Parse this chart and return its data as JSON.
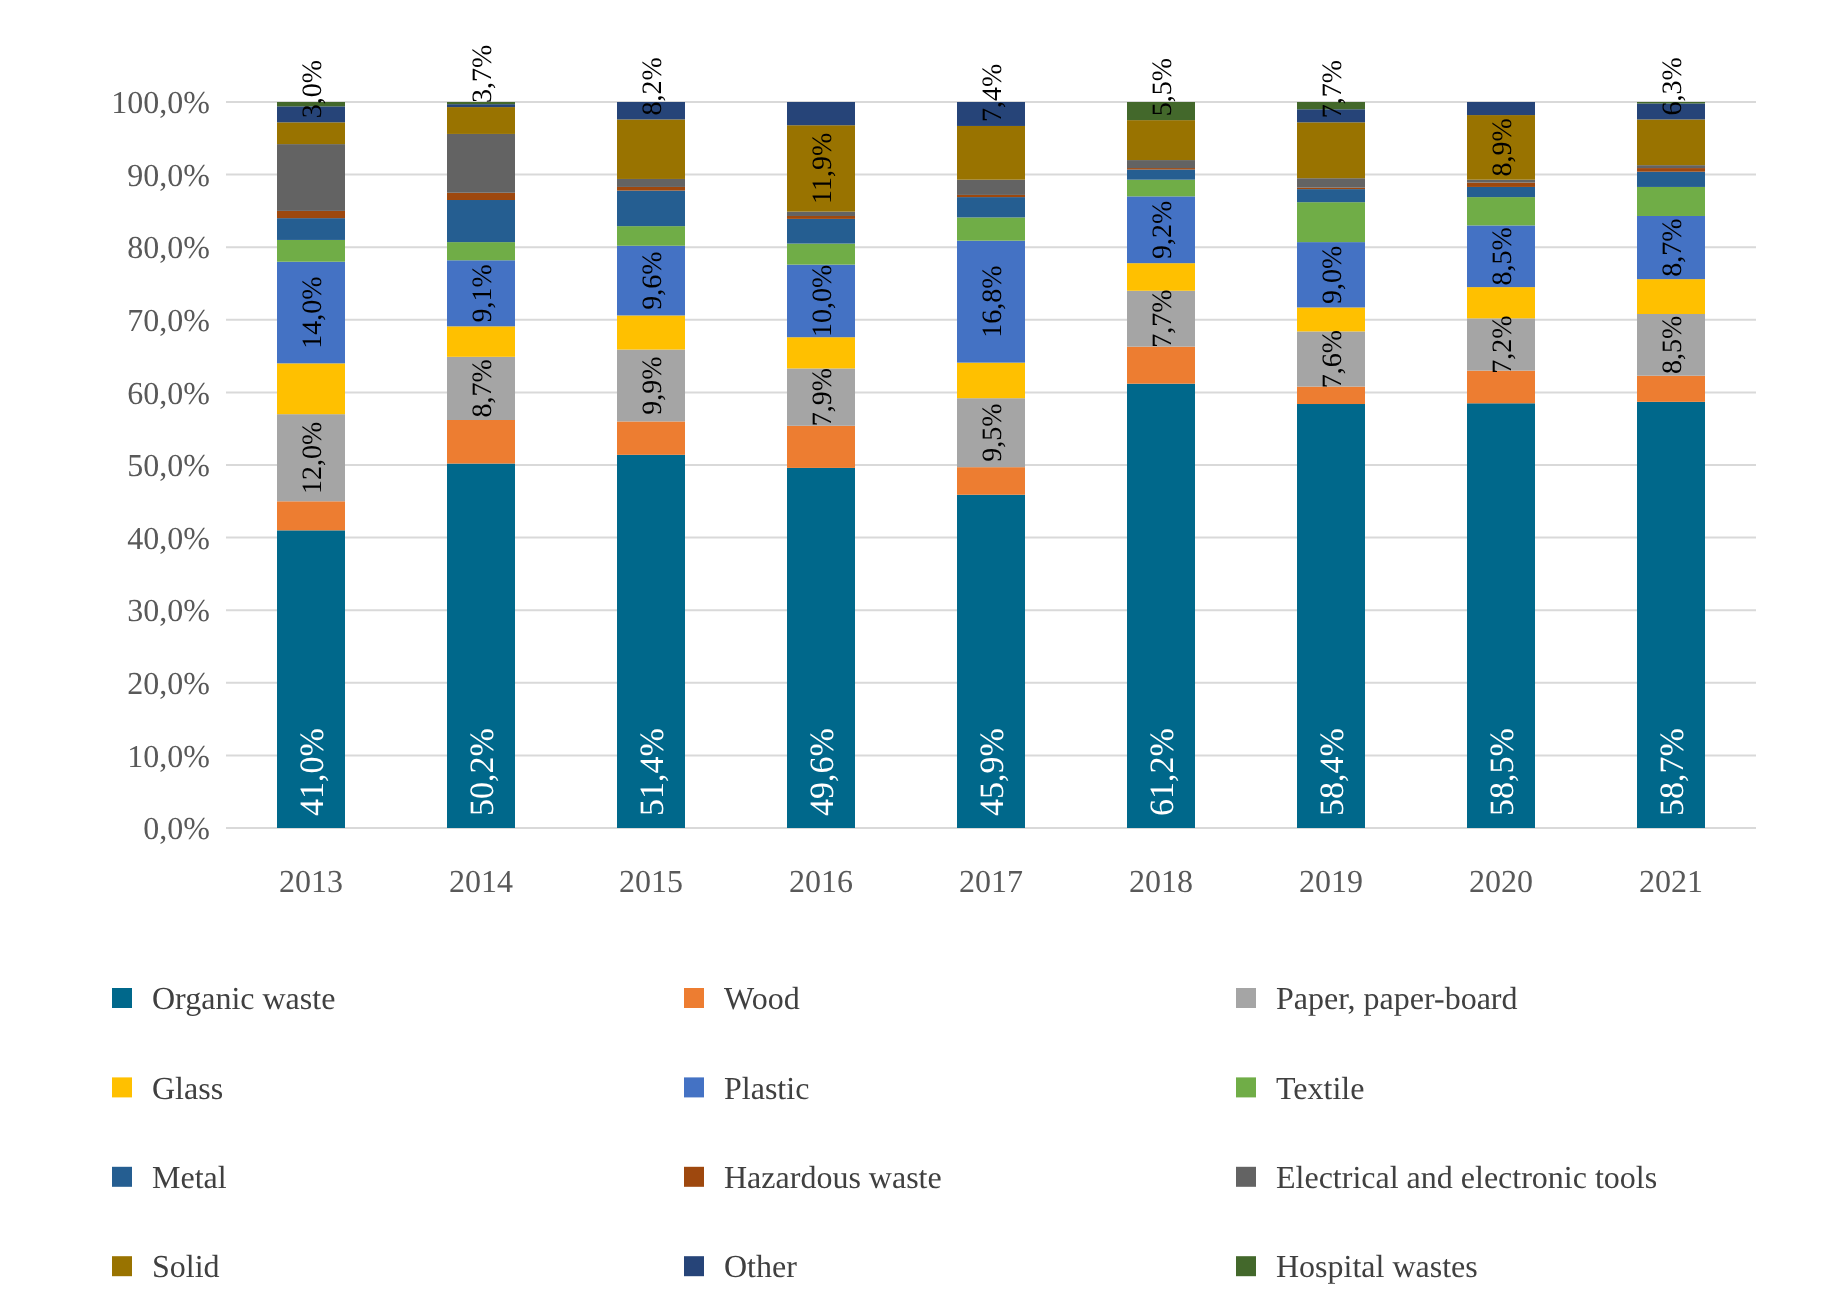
{
  "chart_data": {
    "type": "bar",
    "stacked": true,
    "categories": [
      "2013",
      "2014",
      "2015",
      "2016",
      "2017",
      "2018",
      "2019",
      "2020",
      "2021"
    ],
    "ylim": [
      0,
      100
    ],
    "yticks": [
      {
        "value": 0,
        "label": "0,0%"
      },
      {
        "value": 10,
        "label": "10,0%"
      },
      {
        "value": 20,
        "label": "20,0%"
      },
      {
        "value": 30,
        "label": "30,0%"
      },
      {
        "value": 40,
        "label": "40,0%"
      },
      {
        "value": 50,
        "label": "50,0%"
      },
      {
        "value": 60,
        "label": "60,0%"
      },
      {
        "value": 70,
        "label": "70,0%"
      },
      {
        "value": 80,
        "label": "80,0%"
      },
      {
        "value": 90,
        "label": "90,0%"
      },
      {
        "value": 100,
        "label": "100,0%"
      }
    ],
    "grid": "y",
    "legend": "bottom",
    "series": [
      {
        "name": "Organic waste",
        "color": "#00688b",
        "values": [
          41.0,
          50.2,
          51.4,
          49.6,
          45.9,
          61.2,
          58.4,
          58.5,
          58.7
        ],
        "value_labels": [
          "41,0%",
          "50,2%",
          "51,4%",
          "49,6%",
          "45,9%",
          "61,2%",
          "58,4%",
          "58,5%",
          "58,7%"
        ]
      },
      {
        "name": "Wood",
        "color": "#ed7d31",
        "values": [
          4.0,
          6.0,
          4.6,
          5.8,
          3.8,
          5.1,
          2.4,
          4.5,
          3.6
        ]
      },
      {
        "name": "Paper, paper-board",
        "color": "#a5a5a5",
        "values": [
          12.0,
          8.7,
          9.9,
          7.9,
          9.5,
          7.7,
          7.6,
          7.2,
          8.5
        ],
        "value_labels": [
          "12,0%",
          "8,7%",
          "9,9%",
          "7,9%",
          "9,5%",
          "7,7%",
          "7,6%",
          "7,2%",
          "8,5%"
        ]
      },
      {
        "name": "Glass",
        "color": "#ffc000",
        "values": [
          7.0,
          4.2,
          4.7,
          4.3,
          4.9,
          3.8,
          3.3,
          4.3,
          4.8
        ]
      },
      {
        "name": "Plastic",
        "color": "#4472c4",
        "values": [
          14.0,
          9.1,
          9.6,
          10.0,
          16.8,
          9.2,
          9.0,
          8.5,
          8.7
        ],
        "value_labels": [
          "14,0%",
          "9,1%",
          "9,6%",
          "10,0%",
          "16,8%",
          "9,2%",
          "9,0%",
          "8,5%",
          "8,7%"
        ]
      },
      {
        "name": "Textile",
        "color": "#70ad47",
        "values": [
          3.0,
          2.5,
          2.7,
          2.9,
          3.2,
          2.3,
          5.5,
          3.9,
          4.0
        ]
      },
      {
        "name": "Metal",
        "color": "#255e91",
        "values": [
          3.0,
          5.8,
          4.9,
          3.4,
          2.8,
          1.4,
          1.8,
          1.4,
          2.1
        ]
      },
      {
        "name": "Hazardous waste",
        "color": "#9e480e",
        "values": [
          1.0,
          1.0,
          0.5,
          0.4,
          0.3,
          0.2,
          0.2,
          0.6,
          0.5
        ]
      },
      {
        "name": "Electrical and electronic tools",
        "color": "#636363",
        "values": [
          9.2,
          8.1,
          1.1,
          0.6,
          2.1,
          1.1,
          1.3,
          0.4,
          0.4
        ]
      },
      {
        "name": "Solid",
        "color": "#997300",
        "values": [
          3.0,
          3.7,
          8.2,
          11.9,
          7.4,
          5.5,
          7.7,
          8.9,
          6.3
        ],
        "value_labels": [
          "3,0%",
          "3,7%",
          "8,2%",
          "11,9%",
          "7,4%",
          "5,5%",
          "7,7%",
          "8,9%",
          "6,3%"
        ]
      },
      {
        "name": "Other",
        "color": "#264478",
        "values": [
          2.2,
          0.4,
          2.4,
          3.2,
          3.3,
          0,
          1.8,
          1.8,
          2.2
        ]
      },
      {
        "name": "Hospital wastes",
        "color": "#43682b",
        "values": [
          0.6,
          0.3,
          0,
          0,
          0,
          2.5,
          1.0,
          0,
          0.2
        ]
      }
    ]
  }
}
